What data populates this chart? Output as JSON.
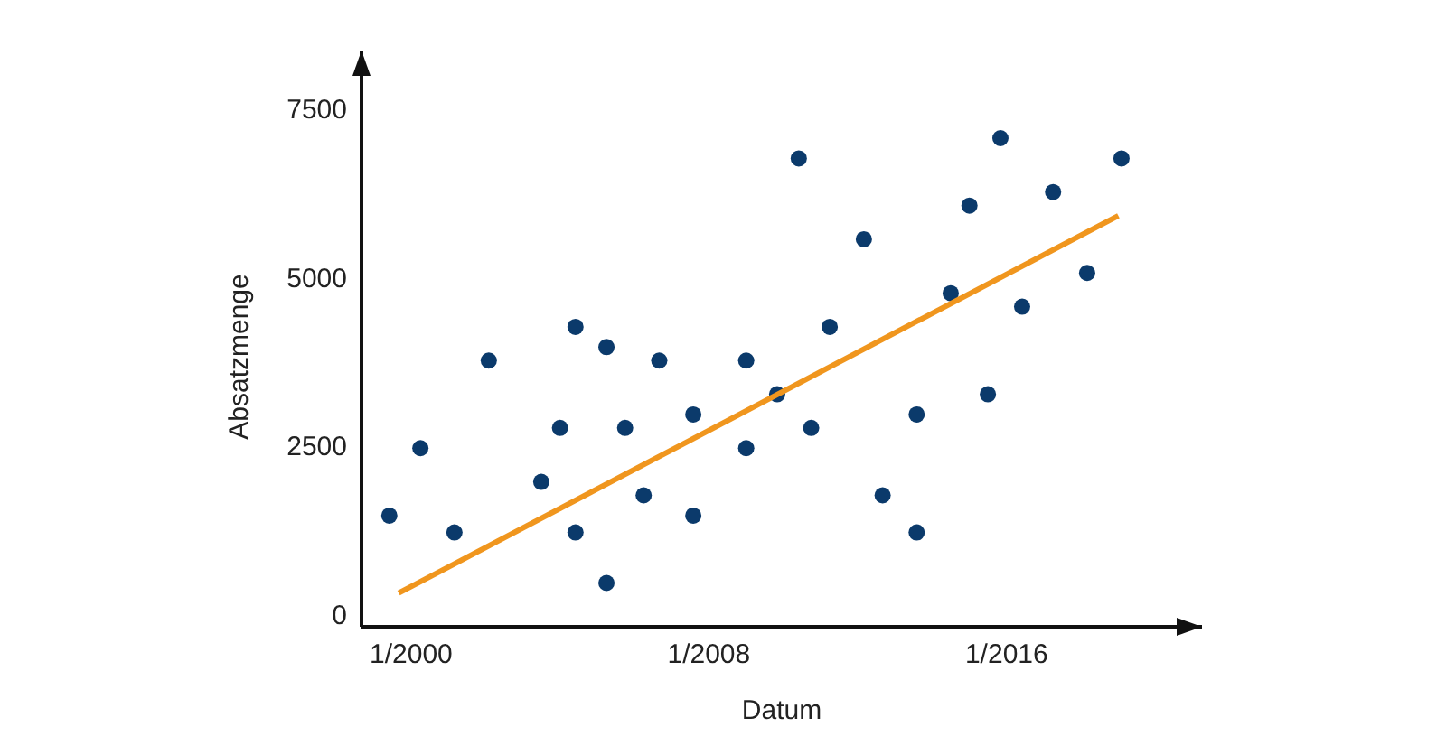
{
  "chart_data": {
    "type": "scatter",
    "xlabel": "Datum",
    "ylabel": "Absatzmenge",
    "xlim": [
      "1998-09",
      "2021-04"
    ],
    "ylim": [
      -150,
      8400
    ],
    "xticks": [
      {
        "value": "2000-01",
        "label": "1/2000"
      },
      {
        "value": "2008-01",
        "label": "1/2008"
      },
      {
        "value": "2016-01",
        "label": "1/2016"
      }
    ],
    "yticks": [
      0,
      2500,
      5000,
      7500
    ],
    "grid": false,
    "series": [
      {
        "color": "#0b3a6b",
        "marker": "circle",
        "x": [
          "1999-06",
          "2000-04",
          "2001-03",
          "2002-02",
          "2003-07",
          "2004-01",
          "2004-06",
          "2004-06",
          "2005-04",
          "2005-04",
          "2005-10",
          "2006-04",
          "2006-09",
          "2007-08",
          "2007-08",
          "2009-01",
          "2009-01",
          "2009-11",
          "2010-06",
          "2010-10",
          "2011-04",
          "2012-03",
          "2012-09",
          "2013-08",
          "2013-08",
          "2014-07",
          "2015-01",
          "2015-07",
          "2015-11",
          "2016-06",
          "2017-04",
          "2018-03",
          "2019-02"
        ],
        "values": [
          1500,
          2500,
          1250,
          3800,
          2000,
          2800,
          4300,
          1250,
          4000,
          500,
          2800,
          1800,
          3800,
          3000,
          1500,
          3800,
          2500,
          3300,
          6800,
          2800,
          4300,
          5600,
          1800,
          3000,
          1250,
          4800,
          6100,
          3300,
          7100,
          4600,
          6300,
          5100,
          6800
        ]
      },
      {
        "type": "line",
        "color": "#f0961e",
        "x": [
          "1999-09",
          "2019-01"
        ],
        "values": [
          350,
          5950
        ],
        "line_style": "solid"
      }
    ]
  }
}
